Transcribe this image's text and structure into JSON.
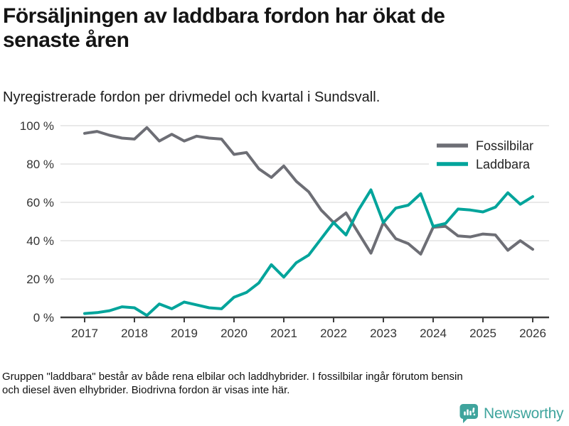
{
  "header": {
    "title": "Försäljningen av laddbara fordon har ökat de\nsenaste åren",
    "subtitle": "Nyregistrerade fordon per drivmedel och kvartal i Sundsvall."
  },
  "chart_data": {
    "type": "line",
    "x": [
      2017,
      2017.25,
      2017.5,
      2017.75,
      2018,
      2018.25,
      2018.5,
      2018.75,
      2019,
      2019.25,
      2019.5,
      2019.75,
      2020,
      2020.25,
      2020.5,
      2020.75,
      2021,
      2021.25,
      2021.5,
      2021.75,
      2022,
      2022.25,
      2022.5,
      2022.75,
      2023,
      2023.25,
      2023.5,
      2023.75,
      2024,
      2024.25,
      2024.5,
      2024.75,
      2025,
      2025.25,
      2025.5,
      2025.75,
      2026
    ],
    "x_unit": "kvartal",
    "series": [
      {
        "name": "Fossilbilar",
        "color": "#6d6e75",
        "values": [
          96,
          97,
          95,
          93.5,
          93,
          99,
          92,
          95.5,
          92,
          94.5,
          93.5,
          93,
          85,
          86,
          77.5,
          73,
          79,
          71,
          65.5,
          56,
          49.5,
          54.5,
          44,
          33.5,
          49.5,
          41,
          38.5,
          33,
          47,
          47.5,
          42.5,
          42,
          43.5,
          43,
          35,
          40,
          35.5
        ]
      },
      {
        "name": "Laddbara",
        "color": "#00a49b",
        "values": [
          2,
          2.5,
          3.5,
          5.5,
          5,
          1,
          7,
          4.5,
          8,
          6.5,
          5,
          4.5,
          10.5,
          13,
          18,
          27.5,
          21,
          28.5,
          32.5,
          41,
          49.5,
          43,
          56,
          66.5,
          49.5,
          57,
          58.5,
          64.5,
          47.5,
          49,
          56.5,
          56,
          55,
          57.5,
          65,
          59,
          63
        ]
      }
    ],
    "ylim": [
      0,
      100
    ],
    "yticks": [
      0,
      20,
      40,
      60,
      80,
      100
    ],
    "ytick_labels": [
      "0 %",
      "20 %",
      "40 %",
      "60 %",
      "80 %",
      "100 %"
    ],
    "xticks": [
      2017,
      2018,
      2019,
      2020,
      2021,
      2022,
      2023,
      2024,
      2025,
      2026
    ],
    "xtick_labels": [
      "2017",
      "2018",
      "2019",
      "2020",
      "2021",
      "2022",
      "2023",
      "2024",
      "2025",
      "2026"
    ],
    "grid": true,
    "legend_position": "inside top-right",
    "gridline_color": "#dcdcdc",
    "axis_color": "#3d3d3d",
    "title": "Försäljningen av laddbara fordon har ökat de senaste åren"
  },
  "footer": {
    "note": "Gruppen \"laddbara\" består av både rena elbilar och laddhybrider. I fossilbilar ingår förutom bensin\noch diesel även elhybrider. Biodrivna fordon är visas inte här.",
    "logo_text": "Newsworthy",
    "logo_color": "#3fa49d"
  }
}
